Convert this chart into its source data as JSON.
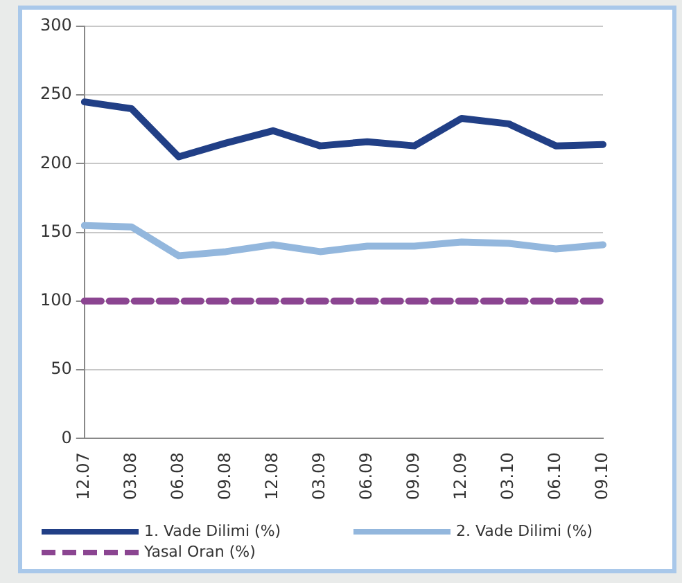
{
  "chart_data": {
    "type": "line",
    "categories": [
      "12.07",
      "03.08",
      "06.08",
      "09.08",
      "12.08",
      "03.09",
      "06.09",
      "09.09",
      "12.09",
      "03.10",
      "06.10",
      "09.10"
    ],
    "series": [
      {
        "name": "1. Vade Dilimi (%)",
        "color": "#213f86",
        "values": [
          245,
          240,
          205,
          215,
          224,
          213,
          216,
          213,
          233,
          229,
          213,
          214
        ]
      },
      {
        "name": "2. Vade Dilimi (%)",
        "color": "#93b7dd",
        "values": [
          155,
          154,
          133,
          136,
          141,
          136,
          140,
          140,
          143,
          142,
          138,
          141
        ]
      },
      {
        "name": "Yasal Oran (%)",
        "color": "#8b4591",
        "line_style": "dashed",
        "values": [
          100,
          100,
          100,
          100,
          100,
          100,
          100,
          100,
          100,
          100,
          100,
          100
        ]
      }
    ],
    "ylim": [
      0,
      300
    ],
    "yticks": [
      0,
      50,
      100,
      150,
      200,
      250,
      300
    ],
    "grid": "y",
    "legend": "bottom",
    "marker": "none"
  }
}
